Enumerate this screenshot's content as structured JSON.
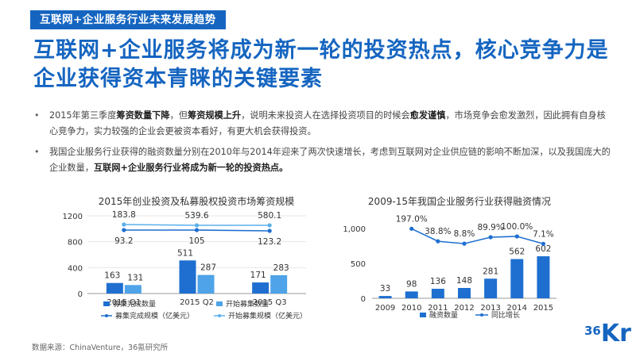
{
  "tag": "互联网+企业服务行业未来发展趋势",
  "headline": "互联网+企业服务将成为新一轮的投资热点，核心竞争力是企业获得资本青睐的关键要素",
  "bullets": [
    {
      "parts": [
        {
          "t": "2015年第三季度",
          "b": false
        },
        {
          "t": "筹资数量下降",
          "b": true
        },
        {
          "t": "，但",
          "b": false
        },
        {
          "t": "筹资规模上升",
          "b": true
        },
        {
          "t": "，说明未来投资人在选择投资项目的时候会",
          "b": false
        },
        {
          "t": "愈发谨慎",
          "b": true
        },
        {
          "t": "，市场竞争会愈发激烈，因此拥有自身核心竞争力，实力较强的企业会更被资本看好，有更大机会获得投资。",
          "b": false
        }
      ]
    },
    {
      "parts": [
        {
          "t": "我国企业服务行业获得的融资数量分别在2010年与2014年迎来了两次快速增长，考虑到互联网对企业供应链的影响不断加深，以及我国庞大的企业数量，",
          "b": false
        },
        {
          "t": "互联网+企业服务行业将成为新一轮的投资热点。",
          "b": true
        }
      ]
    }
  ],
  "source": "数据来源：ChinaVenture，36氪研究所",
  "logo": {
    "num": "36",
    "kr": "Kr"
  },
  "colors": {
    "accent": "#1565c0",
    "dark_bar": "#1e6fd0",
    "light_bar": "#4fa3e8",
    "light_line": "#5bb0ea"
  },
  "chart_data": [
    {
      "type": "bar+line",
      "title": "2015年创业投资及私募股权投资市场筹资规模",
      "categories": [
        "2015 Q1",
        "2015 Q2",
        "2015 Q3"
      ],
      "ylim": [
        0,
        1200
      ],
      "yticks": [
        "0",
        "400",
        "800",
        "1200"
      ],
      "bar_series": [
        {
          "name": "募集完成数量",
          "values": [
            163,
            511,
            171
          ],
          "labels": [
            "163",
            "511",
            "171"
          ],
          "color": "#1e6fd0"
        },
        {
          "name": "开始募集数量",
          "values": [
            131,
            287,
            283
          ],
          "labels": [
            "131",
            "287",
            "283"
          ],
          "color": "#4fa3e8"
        }
      ],
      "line_series": [
        {
          "name": "募集完成规模（亿美元）",
          "values": [
            93.2,
            105,
            123.2
          ],
          "labels": [
            "93.2",
            "105",
            "123.2"
          ],
          "color": "#1e6fd0"
        },
        {
          "name": "开始募集规模（亿美元）",
          "values": [
            183.8,
            539.6,
            580.1
          ],
          "labels": [
            "183.8",
            "539.6",
            "580.1"
          ],
          "color": "#5bb0ea"
        }
      ]
    },
    {
      "type": "bar+line",
      "title": "2009-15年我国企业服务行业获得融资情况",
      "categories": [
        "2009",
        "2010",
        "2011",
        "2012",
        "2013",
        "2014",
        "2015"
      ],
      "ylim": [
        0,
        1000
      ],
      "yticks": [
        "0",
        "500",
        "1,000"
      ],
      "bar_series": [
        {
          "name": "融资数量",
          "values": [
            33,
            98,
            136,
            148,
            281,
            562,
            602
          ],
          "labels": [
            "33",
            "98",
            "136",
            "148",
            "281",
            "562",
            "602"
          ],
          "color": "#1e6fd0"
        }
      ],
      "line_series": [
        {
          "name": "同比增长",
          "values": [
            null,
            197.0,
            38.8,
            8.8,
            89.9,
            100.0,
            7.1
          ],
          "labels": [
            "",
            "197.0%",
            "38.8%",
            "8.8%",
            "89.9%",
            "100.0%",
            "7.1%"
          ],
          "color": "#1e6fd0"
        }
      ]
    }
  ]
}
